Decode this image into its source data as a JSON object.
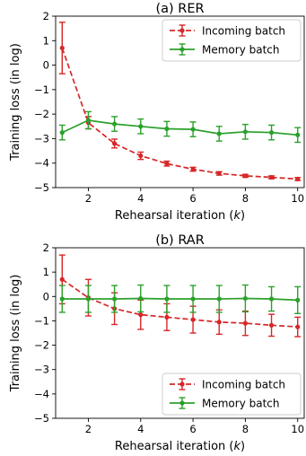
{
  "chart_data": [
    {
      "type": "line",
      "title": "(a) RER",
      "xlabel_prefix": "Rehearsal iteration (",
      "xlabel_var": "k",
      "xlabel_suffix": ")",
      "ylabel": "Training loss (in log)",
      "xlim": [
        0.75,
        10.25
      ],
      "ylim": [
        -5,
        2
      ],
      "xticks": [
        2,
        4,
        6,
        8,
        10
      ],
      "yticks": [
        -5,
        -4,
        -3,
        -2,
        -1,
        0,
        1,
        2
      ],
      "legend_position": "top-right",
      "x": [
        1,
        2,
        3,
        4,
        5,
        6,
        7,
        8,
        9,
        10
      ],
      "series": [
        {
          "name": "Incoming batch",
          "color": "#d62728",
          "style": "dashed",
          "values": [
            0.7,
            -2.35,
            -3.2,
            -3.7,
            -4.02,
            -4.25,
            -4.42,
            -4.52,
            -4.58,
            -4.65
          ],
          "errors": [
            1.05,
            0.25,
            0.18,
            0.15,
            0.1,
            0.08,
            0.07,
            0.06,
            0.06,
            0.06
          ]
        },
        {
          "name": "Memory batch",
          "color": "#2ca02c",
          "style": "solid",
          "values": [
            -2.75,
            -2.25,
            -2.4,
            -2.5,
            -2.6,
            -2.62,
            -2.8,
            -2.72,
            -2.75,
            -2.85
          ],
          "errors": [
            0.3,
            0.35,
            0.3,
            0.3,
            0.3,
            0.3,
            0.3,
            0.3,
            0.3,
            0.3
          ]
        }
      ]
    },
    {
      "type": "line",
      "title": "(b) RAR",
      "xlabel_prefix": "Rehearsal iteration (",
      "xlabel_var": "k",
      "xlabel_suffix": ")",
      "ylabel": "Training loss (in log)",
      "xlim": [
        0.75,
        10.25
      ],
      "ylim": [
        -5,
        2
      ],
      "xticks": [
        2,
        4,
        6,
        8,
        10
      ],
      "yticks": [
        -5,
        -4,
        -3,
        -2,
        -1,
        0,
        1,
        2
      ],
      "legend_position": "bottom-right",
      "x": [
        1,
        2,
        3,
        4,
        5,
        6,
        7,
        8,
        9,
        10
      ],
      "series": [
        {
          "name": "Incoming batch",
          "color": "#d62728",
          "style": "dashed",
          "values": [
            0.7,
            -0.05,
            -0.5,
            -0.75,
            -0.85,
            -0.95,
            -1.05,
            -1.1,
            -1.18,
            -1.25
          ],
          "errors": [
            1.0,
            0.75,
            0.65,
            0.6,
            0.55,
            0.55,
            0.5,
            0.5,
            0.45,
            0.4
          ]
        },
        {
          "name": "Memory batch",
          "color": "#2ca02c",
          "style": "solid",
          "values": [
            -0.1,
            -0.1,
            -0.1,
            -0.08,
            -0.1,
            -0.1,
            -0.1,
            -0.08,
            -0.1,
            -0.15
          ],
          "errors": [
            0.55,
            0.55,
            0.55,
            0.55,
            0.55,
            0.55,
            0.55,
            0.55,
            0.5,
            0.55
          ]
        }
      ]
    }
  ]
}
